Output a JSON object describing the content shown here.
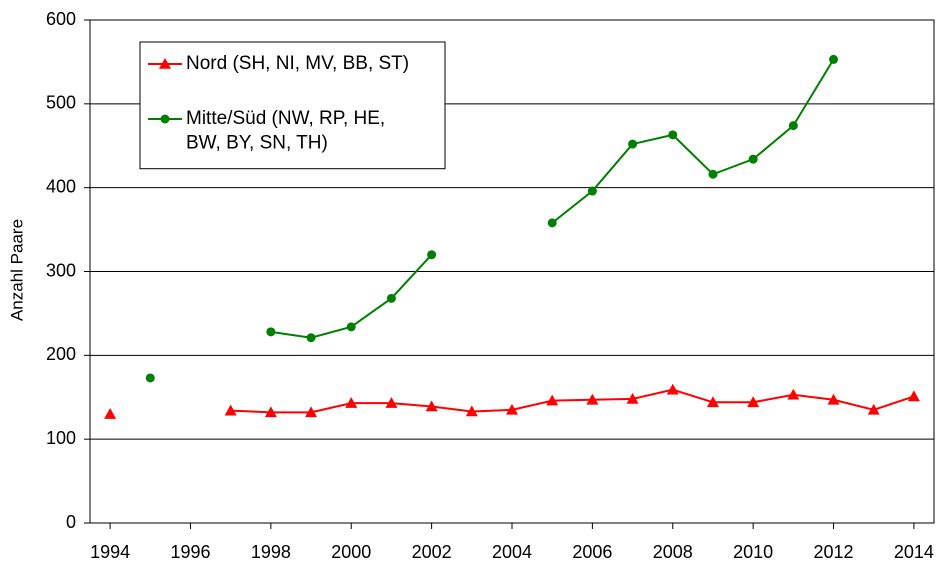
{
  "chart_data": {
    "type": "line",
    "y_label": "Anzahl Paare",
    "x": [
      1994,
      1995,
      1996,
      1997,
      1998,
      1999,
      2000,
      2001,
      2002,
      2003,
      2004,
      2005,
      2006,
      2007,
      2008,
      2009,
      2010,
      2011,
      2012,
      2013,
      2014
    ],
    "series": [
      {
        "name": "Nord (SH, NI, MV, BB, ST)",
        "color": "#ff0000",
        "marker": "triangle",
        "values": [
          130,
          null,
          null,
          134,
          132,
          132,
          143,
          143,
          139,
          133,
          135,
          146,
          147,
          148,
          159,
          144,
          144,
          153,
          147,
          135,
          151
        ]
      },
      {
        "name": "Mitte/Süd (NW, RP, HE, BW, BY, SN, TH)",
        "color": "#008000",
        "marker": "circle",
        "values": [
          null,
          173,
          null,
          null,
          228,
          221,
          234,
          268,
          320,
          null,
          null,
          358,
          396,
          452,
          463,
          416,
          434,
          474,
          553,
          null,
          null
        ]
      }
    ],
    "xlim": [
      1993.5,
      2014.5
    ],
    "xticks": [
      1994,
      1996,
      1998,
      2000,
      2002,
      2004,
      2006,
      2008,
      2010,
      2012,
      2014
    ],
    "ylim": [
      0,
      600
    ],
    "yticks": [
      0,
      100,
      200,
      300,
      400,
      500,
      600
    ],
    "grid": true,
    "legend": "upper left"
  }
}
